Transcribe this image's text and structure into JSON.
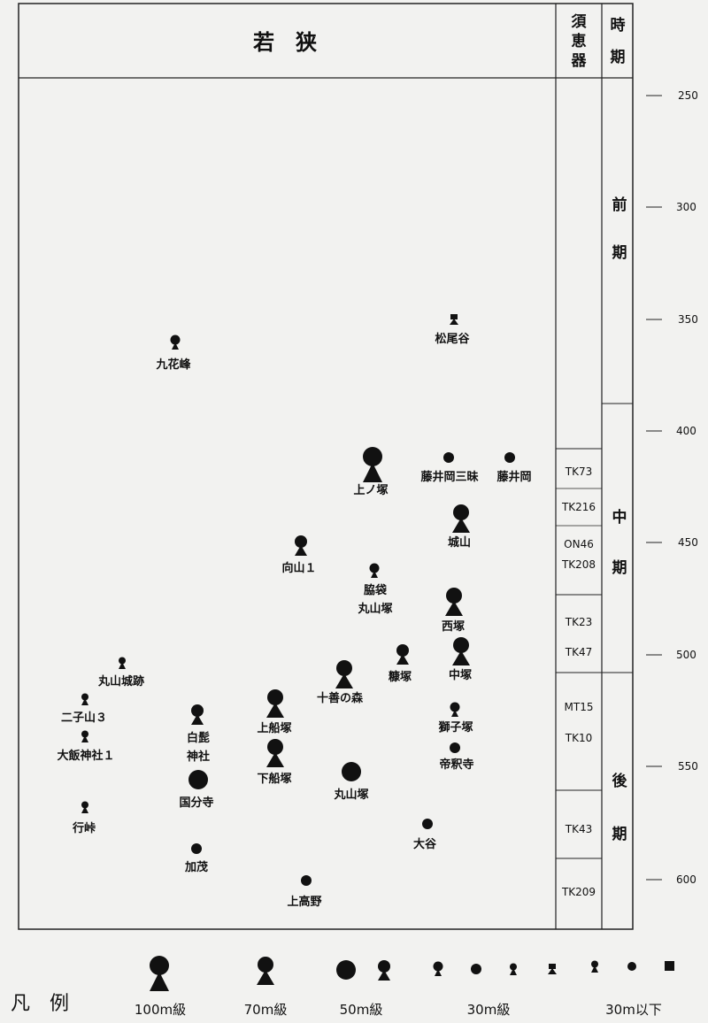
{
  "header": {
    "region": "若　狭",
    "sue_head": [
      "須",
      "恵",
      "器"
    ],
    "period_head": [
      "時",
      "期"
    ]
  },
  "years": [
    "250",
    "300",
    "350",
    "400",
    "450",
    "500",
    "550",
    "600"
  ],
  "periods": {
    "early": [
      "前",
      "期"
    ],
    "middle": [
      "中",
      "期"
    ],
    "late": [
      "後",
      "期"
    ]
  },
  "sueki": [
    "TK73",
    "TK216",
    "ON46",
    "TK208",
    "TK23",
    "TK47",
    "MT15",
    "TK10",
    "TK43",
    "TK209"
  ],
  "sites": [
    {
      "name": "九花峰",
      "symbol": "keyhole-30"
    },
    {
      "name": "松尾谷",
      "symbol": "square-30"
    },
    {
      "name": "上ノ塚",
      "symbol": "keyhole-100"
    },
    {
      "name": "藤井岡三昧",
      "symbol": "circle-30"
    },
    {
      "name": "藤井岡",
      "symbol": "circle-30"
    },
    {
      "name": "城山",
      "symbol": "keyhole-70"
    },
    {
      "name": "向山１",
      "symbol": "keyhole-50"
    },
    {
      "name": "脇袋",
      "line2": "丸山塚",
      "symbol": "keyhole-30"
    },
    {
      "name": "西塚",
      "symbol": "keyhole-70"
    },
    {
      "name": "中塚",
      "symbol": "keyhole-70"
    },
    {
      "name": "糠塚",
      "symbol": "keyhole-50"
    },
    {
      "name": "十善の森",
      "symbol": "keyhole-70"
    },
    {
      "name": "丸山城跡",
      "symbol": "keyhole-small"
    },
    {
      "name": "二子山３",
      "symbol": "keyhole-small"
    },
    {
      "name": "大飯神社１",
      "symbol": "keyhole-small"
    },
    {
      "name": "白髭",
      "line2": "神社",
      "symbol": "keyhole-50"
    },
    {
      "name": "上船塚",
      "symbol": "keyhole-70"
    },
    {
      "name": "獅子塚",
      "symbol": "keyhole-30"
    },
    {
      "name": "帝釈寺",
      "symbol": "circle-30"
    },
    {
      "name": "下船塚",
      "symbol": "keyhole-70"
    },
    {
      "name": "丸山塚",
      "symbol": "circle-50"
    },
    {
      "name": "国分寺",
      "symbol": "circle-50"
    },
    {
      "name": "行峠",
      "symbol": "keyhole-small"
    },
    {
      "name": "大谷",
      "symbol": "circle-30"
    },
    {
      "name": "加茂",
      "symbol": "circle-30"
    },
    {
      "name": "上高野",
      "symbol": "circle-30"
    }
  ],
  "legend": {
    "title": "凡　例",
    "l100": "100m級",
    "l70": "70m級",
    "l50": "50m級",
    "l30": "30m級",
    "lunder": "30m以下"
  }
}
